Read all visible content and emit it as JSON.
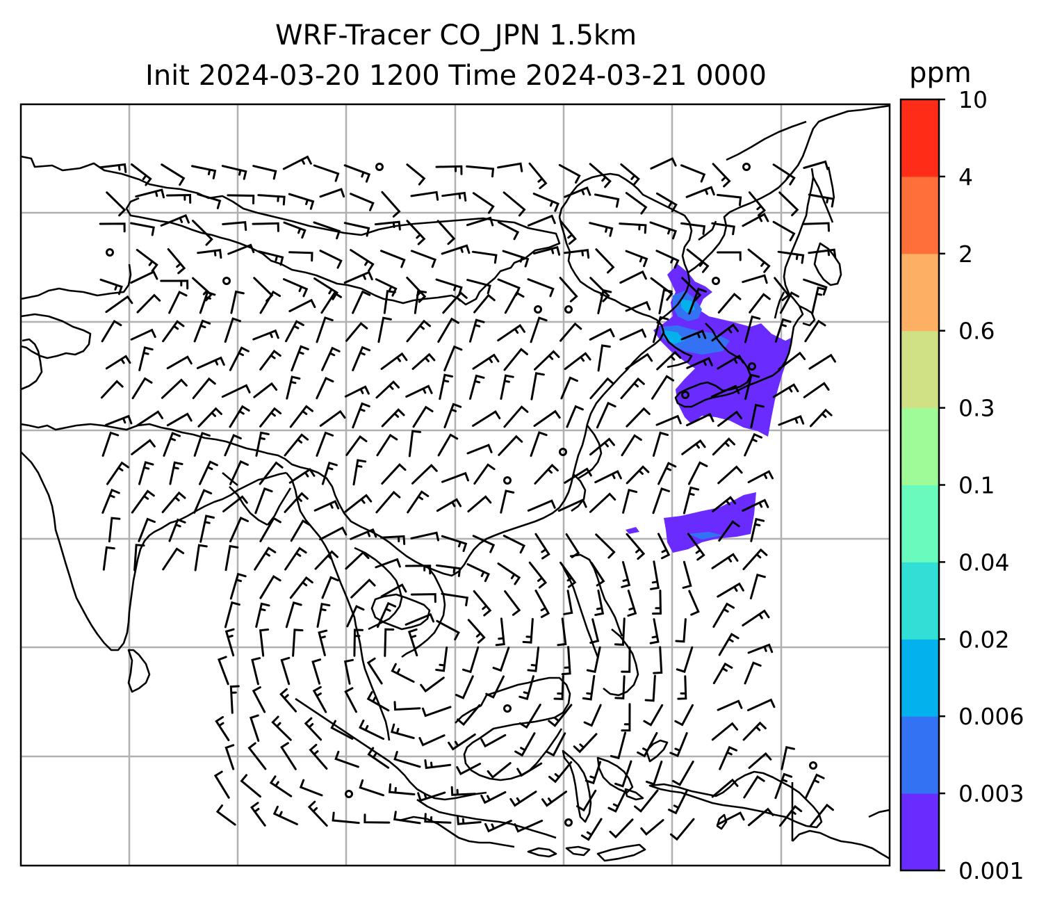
{
  "title": {
    "line1": "WRF-Tracer CO_JPN 1.5km",
    "line2": "Init 2024-03-20 1200 Time 2024-03-21 0000"
  },
  "colorbar": {
    "unit": "ppm",
    "levels": [
      "0.001",
      "0.003",
      "0.006",
      "0.02",
      "0.04",
      "0.1",
      "0.3",
      "0.6",
      "2",
      "4",
      "10"
    ],
    "colors": [
      "#6a2bff",
      "#3373f3",
      "#03b2ec",
      "#31dfd6",
      "#69fbbe",
      "#9ffa98",
      "#d0e185",
      "#fdb063",
      "#ff6f3a",
      "#ff2d17"
    ]
  },
  "map": {
    "region": "East and Southeast Asia",
    "gridlines": true,
    "field": "CO tracer concentration with wind barbs",
    "plume_colors": {
      "main": "#6a2bff",
      "secondary": "#3373f3",
      "core": "#03b2ec"
    }
  }
}
